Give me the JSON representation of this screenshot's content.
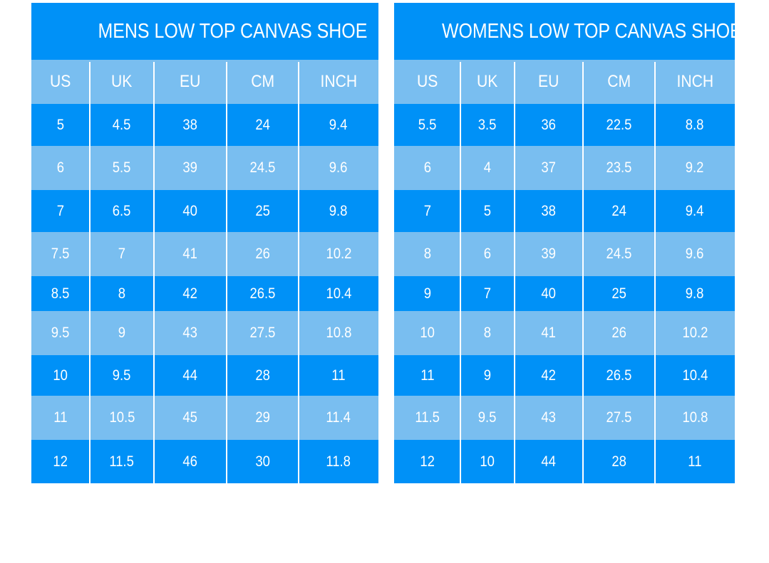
{
  "colors": {
    "dark": "#0091f7",
    "light": "#79bef0",
    "text": "#ffffff"
  },
  "tables": [
    {
      "title": "MENS LOW TOP CANVAS SHOE",
      "headers": [
        "US",
        "UK",
        "EU",
        "CM",
        "INCH"
      ],
      "rows": [
        [
          "5",
          "4.5",
          "38",
          "24",
          "9.4"
        ],
        [
          "6",
          "5.5",
          "39",
          "24.5",
          "9.6"
        ],
        [
          "7",
          "6.5",
          "40",
          "25",
          "9.8"
        ],
        [
          "7.5",
          "7",
          "41",
          "26",
          "10.2"
        ],
        [
          "8.5",
          "8",
          "42",
          "26.5",
          "10.4"
        ],
        [
          "9.5",
          "9",
          "43",
          "27.5",
          "10.8"
        ],
        [
          "10",
          "9.5",
          "44",
          "28",
          "11"
        ],
        [
          "11",
          "10.5",
          "45",
          "29",
          "11.4"
        ],
        [
          "12",
          "11.5",
          "46",
          "30",
          "11.8"
        ]
      ]
    },
    {
      "title": "WOMENS LOW TOP CANVAS SHOE",
      "headers": [
        "US",
        "UK",
        "EU",
        "CM",
        "INCH"
      ],
      "rows": [
        [
          "5.5",
          "3.5",
          "36",
          "22.5",
          "8.8"
        ],
        [
          "6",
          "4",
          "37",
          "23.5",
          "9.2"
        ],
        [
          "7",
          "5",
          "38",
          "24",
          "9.4"
        ],
        [
          "8",
          "6",
          "39",
          "24.5",
          "9.6"
        ],
        [
          "9",
          "7",
          "40",
          "25",
          "9.8"
        ],
        [
          "10",
          "8",
          "41",
          "26",
          "10.2"
        ],
        [
          "11",
          "9",
          "42",
          "26.5",
          "10.4"
        ],
        [
          "11.5",
          "9.5",
          "43",
          "27.5",
          "10.8"
        ],
        [
          "12",
          "10",
          "44",
          "28",
          "11"
        ]
      ]
    }
  ]
}
